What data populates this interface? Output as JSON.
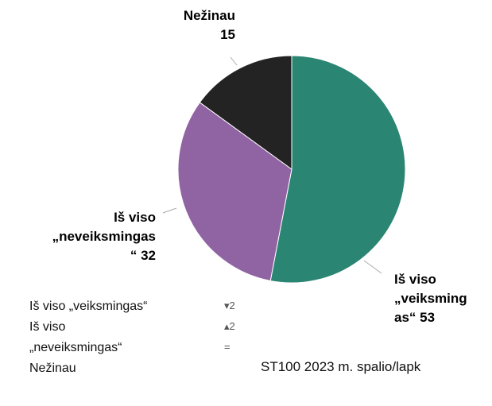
{
  "chart_data": {
    "type": "pie",
    "categories": [
      "Iš viso „veiksmingas“",
      "Iš viso „neveiksmingas“",
      "Nežinau"
    ],
    "values": [
      53,
      32,
      15
    ],
    "colors": [
      "#2a8572",
      "#9063a3",
      "#232323"
    ],
    "legend": true
  },
  "toolbar": [
    "▾2",
    "▴2",
    "="
  ],
  "footer": "ST100 2023 m. spalio/lapk"
}
